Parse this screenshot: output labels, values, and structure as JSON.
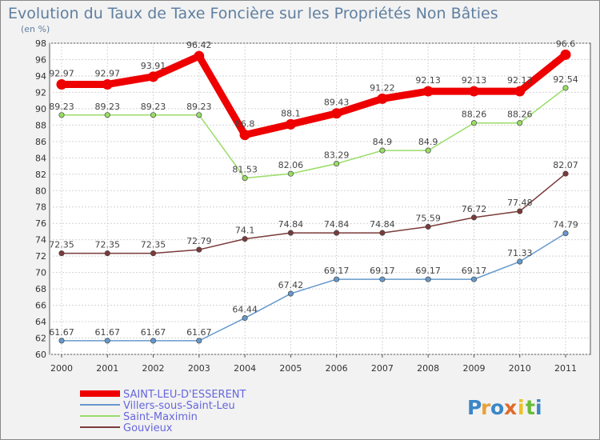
{
  "chart_data": {
    "type": "line",
    "title": "Evolution du Taux de Taxe Foncière sur les Propriétés Non Bâties",
    "subtitle": "(en %)",
    "x": [
      "2000",
      "2001",
      "2002",
      "2003",
      "2004",
      "2005",
      "2006",
      "2007",
      "2008",
      "2009",
      "2010",
      "2011"
    ],
    "ylim": [
      60,
      98
    ],
    "yticks": [
      60,
      62,
      64,
      66,
      68,
      70,
      72,
      74,
      76,
      78,
      80,
      82,
      84,
      86,
      88,
      90,
      92,
      94,
      96,
      98
    ],
    "grid": true,
    "legend_position": "bottom-left",
    "series": [
      {
        "name": "SAINT-LEU-D'ESSERENT",
        "color": "#ee0000",
        "values": [
          92.97,
          92.97,
          93.91,
          96.42,
          86.8,
          88.1,
          89.43,
          91.22,
          92.13,
          92.13,
          92.13,
          96.6
        ],
        "labels": [
          "92.97",
          "92.97",
          "93.91",
          "96.42",
          "86.8",
          "88.1",
          "89.43",
          "91.22",
          "92.13",
          "92.13",
          "92.13",
          "96.6"
        ]
      },
      {
        "name": "Villers-sous-Saint-Leu",
        "color": "#6699cc",
        "values": [
          61.67,
          61.67,
          61.67,
          61.67,
          64.44,
          67.42,
          69.17,
          69.17,
          69.17,
          69.17,
          71.33,
          74.79
        ],
        "labels": [
          "61.67",
          "61.67",
          "61.67",
          "61.67",
          "64.44",
          "67.42",
          "69.17",
          "69.17",
          "69.17",
          "69.17",
          "71.33",
          "74.79"
        ]
      },
      {
        "name": "Saint-Maximin",
        "color": "#99dd66",
        "values": [
          89.23,
          89.23,
          89.23,
          89.23,
          81.53,
          82.06,
          83.29,
          84.9,
          84.9,
          88.26,
          88.26,
          92.54
        ],
        "labels": [
          "89.23",
          "89.23",
          "89.23",
          "89.23",
          "81.53",
          "82.06",
          "83.29",
          "84.9",
          "84.9",
          "88.26",
          "88.26",
          "92.54"
        ]
      },
      {
        "name": "Gouvieux",
        "color": "#7b3a3a",
        "values": [
          72.35,
          72.35,
          72.35,
          72.79,
          74.1,
          74.84,
          74.84,
          74.84,
          75.59,
          76.72,
          77.48,
          82.07
        ],
        "labels": [
          "72.35",
          "72.35",
          "72.35",
          "72.79",
          "74.1",
          "74.84",
          "74.84",
          "74.84",
          "75.59",
          "76.72",
          "77.48",
          "82.07"
        ]
      }
    ]
  },
  "logo": {
    "text": "Proxiti",
    "letters": [
      {
        "ch": "P",
        "color": "#3a86c8"
      },
      {
        "ch": "r",
        "color": "#e8a13a"
      },
      {
        "ch": "o",
        "color": "#3a86c8"
      },
      {
        "ch": "x",
        "color": "#e06a2a"
      },
      {
        "ch": "i",
        "color": "#f0c020"
      },
      {
        "ch": "t",
        "color": "#6abb3a"
      },
      {
        "ch": "i",
        "color": "#3a86c8"
      }
    ]
  }
}
